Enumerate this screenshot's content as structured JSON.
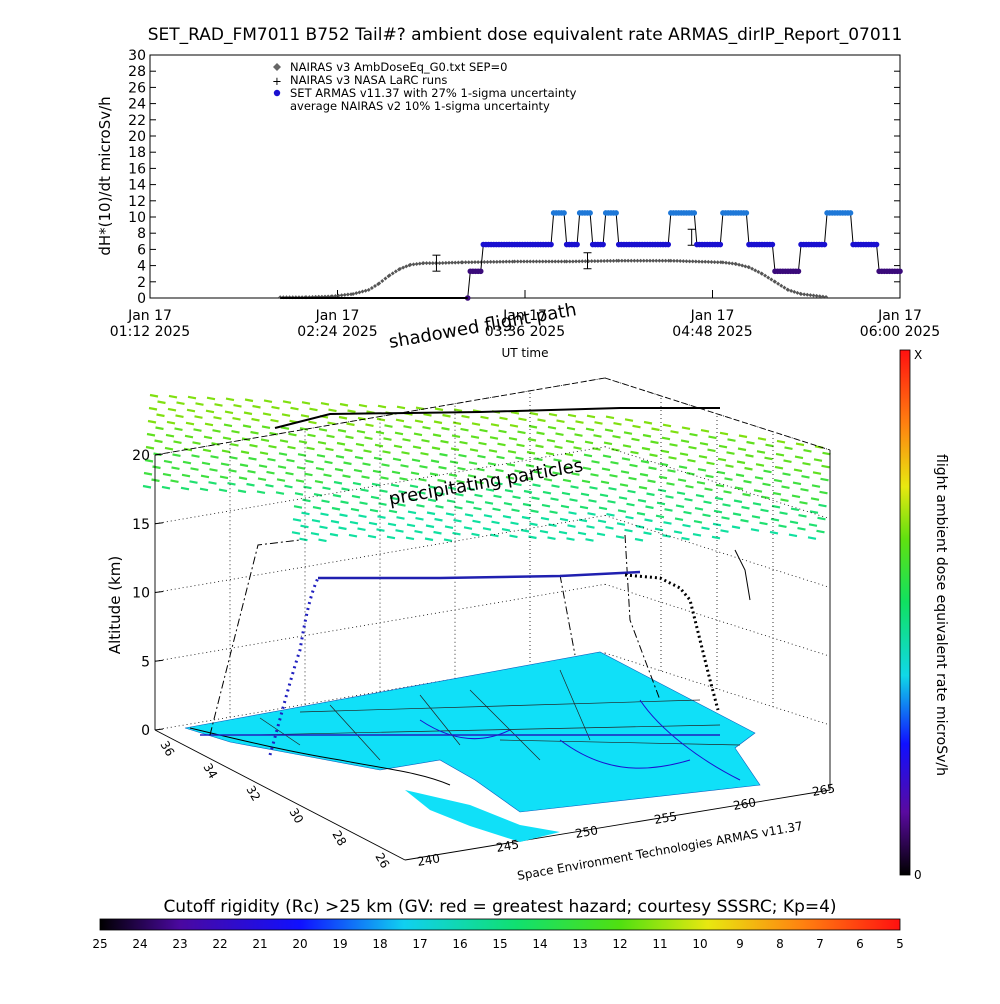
{
  "title": "SET_RAD_FM7011  B752 Tail#? ambient dose equivalent rate ARMAS_dirIP_Report_07011",
  "top_plot": {
    "ylabel": "dH*(10)/dt microSv/h",
    "xlabel": "UT time",
    "yticks": [
      "0",
      "2",
      "4",
      "6",
      "8",
      "10",
      "12",
      "14",
      "16",
      "18",
      "20",
      "22",
      "24",
      "26",
      "28",
      "30"
    ],
    "xticks": [
      {
        "line1": "Jan 17",
        "line2": "01:12 2025"
      },
      {
        "line1": "Jan 17",
        "line2": "02:24 2025"
      },
      {
        "line1": "Jan 17",
        "line2": "03:36 2025"
      },
      {
        "line1": "Jan 17",
        "line2": "04:48 2025"
      },
      {
        "line1": "Jan 17",
        "line2": "06:00 2025"
      }
    ],
    "legend": [
      {
        "symbol": "◆",
        "text": "NAIRAS v3 AmbDoseEq_G0.txt SEP=0"
      },
      {
        "symbol": "+",
        "text": "NAIRAS v3 NASA LaRC runs"
      },
      {
        "symbol": "●",
        "text": "SET ARMAS v11.37 with 27% 1-sigma uncertainty"
      },
      {
        "symbol": "",
        "text": "average NAIRAS v2 10% 1-sigma uncertainty"
      }
    ],
    "colors": {
      "nairas": "#555555",
      "armas_high": "#1e78d8",
      "armas_mid": "#1a10d0",
      "armas_low": "#3a0a7a"
    }
  },
  "chart_data": [
    {
      "type": "scatter",
      "title": "SET_RAD_FM7011  B752 Tail#? ambient dose equivalent rate ARMAS_dirIP_Report_07011",
      "xlabel": "UT time",
      "ylabel": "dH*(10)/dt microSv/h",
      "ylim": [
        0,
        30
      ],
      "xlim": [
        "Jan 17 01:12 2025",
        "Jan 17 06:00 2025"
      ],
      "grid": false,
      "legend_position": "top-left",
      "series": [
        {
          "name": "NAIRAS v3 AmbDoseEq_G0.txt SEP=0",
          "x_minutes": [
            50,
            60,
            70,
            78,
            84,
            88,
            92,
            96,
            100,
            105,
            110,
            120,
            140,
            160,
            180,
            200,
            220,
            225,
            230,
            235,
            240,
            245,
            250,
            260
          ],
          "y": [
            0.1,
            0.1,
            0.2,
            0.5,
            1.0,
            1.8,
            2.8,
            3.6,
            4.1,
            4.3,
            4.3,
            4.4,
            4.5,
            4.5,
            4.6,
            4.6,
            4.4,
            4.2,
            3.8,
            3.0,
            2.0,
            1.0,
            0.5,
            0.1
          ]
        },
        {
          "name": "NAIRAS v3 NASA LaRC runs",
          "x_minutes": [
            110,
            168,
            208
          ],
          "y": [
            4.3,
            4.6,
            7.5
          ]
        },
        {
          "name": "SET ARMAS v11.37 with 27% 1-sigma uncertainty",
          "x_minutes": [
            122,
            123,
            128,
            140,
            148,
            155,
            160,
            165,
            170,
            175,
            180,
            190,
            200,
            210,
            220,
            230,
            240,
            250,
            255,
            260,
            270,
            280,
            288
          ],
          "y": [
            0,
            3.3,
            6.6,
            6.6,
            6.6,
            10.5,
            6.6,
            10.5,
            6.6,
            10.5,
            6.6,
            6.6,
            10.5,
            6.6,
            10.5,
            6.6,
            3.3,
            6.6,
            6.6,
            10.5,
            6.6,
            3.3,
            3.3
          ]
        }
      ]
    },
    {
      "type": "scatter",
      "title": "",
      "xlabel": "",
      "ylabel": "Altitude (km)",
      "zticks": [
        "0",
        "5",
        "10",
        "15",
        "20"
      ],
      "lat_ticks": [
        "36",
        "34",
        "32",
        "30",
        "28",
        "26"
      ],
      "lon_ticks": [
        "240",
        "245",
        "250",
        "255",
        "260",
        "265"
      ],
      "annotations": [
        "shadowed flight path",
        "precipitating particles"
      ],
      "series": [
        {
          "name": "",
          "x": [
            0
          ],
          "y": [
            11
          ]
        }
      ]
    }
  ],
  "map3d": {
    "annotation_shadow": "shadowed flight path",
    "annotation_precip": "precipitating particles",
    "ylabel": "Altitude (km)",
    "credit": "Space Environment Technologies ARMAS v11.37",
    "zticks": [
      "0",
      "5",
      "10",
      "15",
      "20"
    ],
    "lat_ticks": [
      "36",
      "34",
      "32",
      "30",
      "28",
      "26"
    ],
    "lon_ticks": [
      "240",
      "245",
      "250",
      "255",
      "260",
      "265"
    ]
  },
  "right_colorbar": {
    "label": "flight ambient dose equivalent rate microSv/h",
    "top_label": "X",
    "bottom_label": "0"
  },
  "bottom_colorbar": {
    "title": "Cutoff rigidity (Rc) >25 km (GV: red = greatest hazard; courtesy SSSRC; Kp=4)",
    "ticks": [
      "25",
      "24",
      "23",
      "22",
      "21",
      "20",
      "19",
      "18",
      "17",
      "16",
      "15",
      "14",
      "13",
      "12",
      "11",
      "10",
      "9",
      "8",
      "7",
      "6",
      "5"
    ]
  }
}
